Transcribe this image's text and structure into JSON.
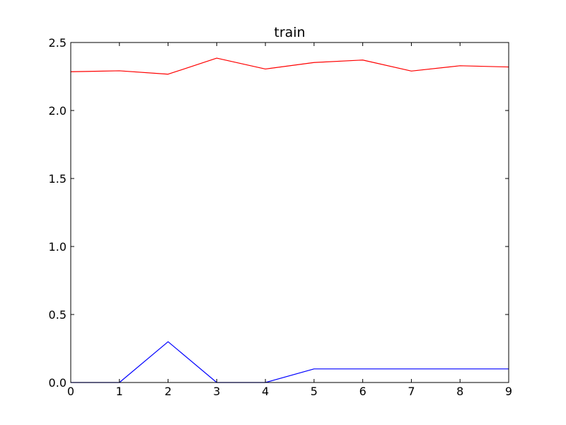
{
  "chart_data": {
    "type": "line",
    "title": "train",
    "xlabel": "",
    "ylabel": "",
    "xlim": [
      0,
      9
    ],
    "ylim": [
      0,
      2.5
    ],
    "xticks": [
      0,
      1,
      2,
      3,
      4,
      5,
      6,
      7,
      8,
      9
    ],
    "yticks": [
      0.0,
      0.5,
      1.0,
      1.5,
      2.0,
      2.5
    ],
    "ytick_labels": [
      "0.0",
      "0.5",
      "1.0",
      "1.5",
      "2.0",
      "2.5"
    ],
    "xtick_labels": [
      "0",
      "1",
      "2",
      "3",
      "4",
      "5",
      "6",
      "7",
      "8",
      "9"
    ],
    "grid": false,
    "legend": false,
    "x": [
      0,
      1,
      2,
      3,
      4,
      5,
      6,
      7,
      8,
      9
    ],
    "series": [
      {
        "color": "#ff0000",
        "values": [
          2.285,
          2.292,
          2.267,
          2.385,
          2.305,
          2.353,
          2.371,
          2.29,
          2.329,
          2.32
        ]
      },
      {
        "color": "#0000ff",
        "values": [
          0.0,
          0.0,
          0.3,
          0.0,
          0.0,
          0.1,
          0.1,
          0.1,
          0.1,
          0.1
        ]
      }
    ]
  }
}
